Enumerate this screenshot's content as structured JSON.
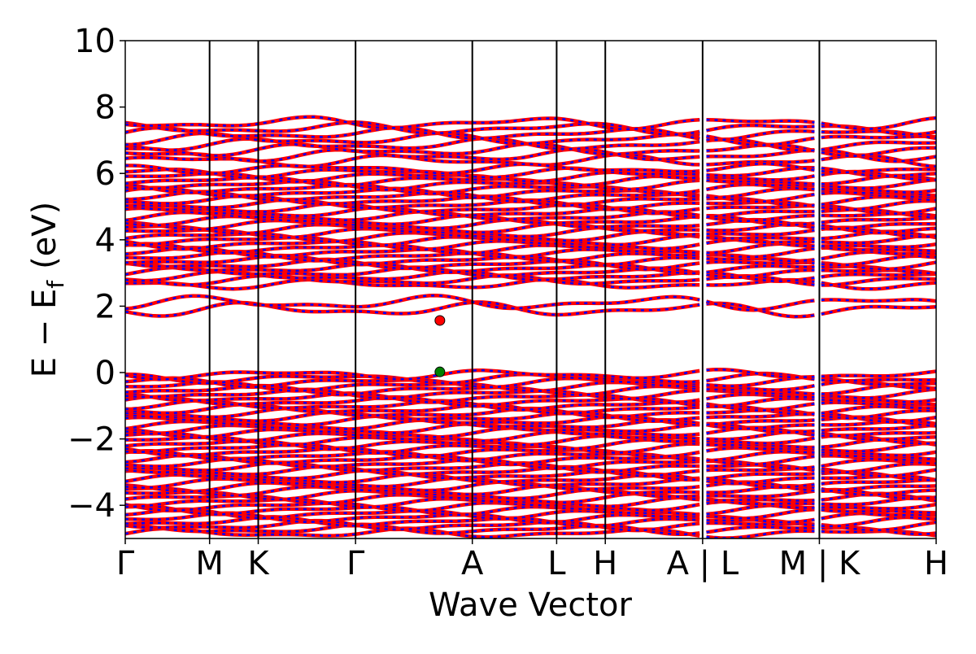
{
  "chart_data": {
    "type": "line",
    "title": "",
    "xlabel": "Wave Vector",
    "ylabel_main": "E − E",
    "ylabel_sub": "f",
    "ylabel_unit": "(eV)",
    "ylim": [
      -5,
      10
    ],
    "yticks": [
      10,
      8,
      6,
      4,
      2,
      0,
      -2,
      -4
    ],
    "ytick_labels": [
      "10",
      "8",
      "6",
      "4",
      "2",
      "0",
      "−2",
      "−4"
    ],
    "xlim": [
      0,
      1
    ],
    "kpoints": [
      {
        "label": "Γ",
        "x": 0.0
      },
      {
        "label": "M",
        "x": 0.104
      },
      {
        "label": "K",
        "x": 0.164
      },
      {
        "label": "Γ",
        "x": 0.284
      },
      {
        "label": "A",
        "x": 0.428
      },
      {
        "label": "L",
        "x": 0.532
      },
      {
        "label": "H",
        "x": 0.592
      },
      {
        "label": "A | L",
        "x": 0.712
      },
      {
        "label": "M | K",
        "x": 0.856
      },
      {
        "label": "H",
        "x": 1.0
      }
    ],
    "colors": {
      "bands": "#ff0000",
      "bands_dash": "#0000ff",
      "cbm": "#ff0000",
      "vbm": "#008000"
    },
    "markers": [
      {
        "name": "CBM",
        "x": 0.388,
        "y": 1.57
      },
      {
        "name": "VBM",
        "x": 0.388,
        "y": 0.02
      }
    ],
    "band_groups": [
      {
        "name": "upper-manifold-top",
        "range": [
          6.3,
          7.6
        ],
        "count": 8
      },
      {
        "name": "upper-manifold-dense",
        "range": [
          2.6,
          6.2
        ],
        "count": 30
      },
      {
        "name": "isolated-conduction",
        "range": [
          1.8,
          2.2
        ],
        "count": 2
      },
      {
        "name": "valence-dense",
        "range": [
          -4.9,
          0.0
        ],
        "count": 42
      }
    ],
    "grid": false,
    "legend": "none"
  }
}
